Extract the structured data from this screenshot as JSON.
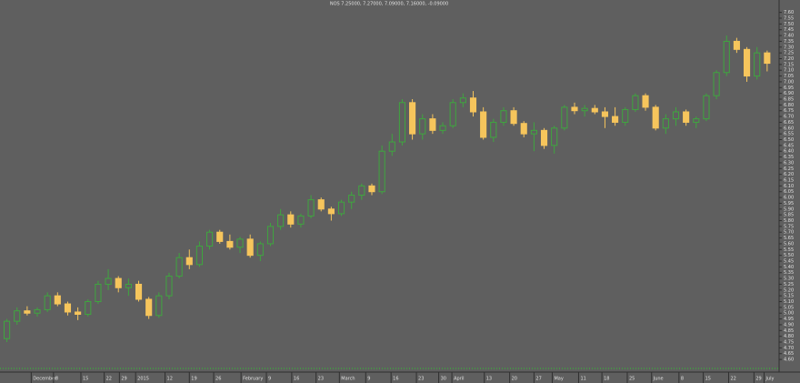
{
  "chart_data": {
    "type": "candlestick",
    "title": "NOS 7.25000, 7.27000, 7.09000, 7.16000, -0.09000",
    "up_color": "#3fa63f",
    "down_color": "#f6c55c",
    "open": [
      4.78,
      4.93,
      5.02,
      5.0,
      5.03,
      5.15,
      5.08,
      5.01,
      4.99,
      5.1,
      5.25,
      5.3,
      5.22,
      5.25,
      5.12,
      4.98,
      5.15,
      5.32,
      5.48,
      5.42,
      5.58,
      5.7,
      5.62,
      5.57,
      5.64,
      5.5,
      5.6,
      5.75,
      5.85,
      5.77,
      5.84,
      5.98,
      5.9,
      5.86,
      5.96,
      6.02,
      6.1,
      6.05,
      6.4,
      6.48,
      6.82,
      6.55,
      6.68,
      6.58,
      6.62,
      6.82,
      6.86,
      6.74,
      6.52,
      6.65,
      6.75,
      6.64,
      6.55,
      6.58,
      6.45,
      6.6,
      6.78,
      6.75,
      6.77,
      6.74,
      6.7,
      6.65,
      6.76,
      6.88,
      6.78,
      6.6,
      6.68,
      6.74,
      6.65,
      6.68,
      6.88,
      7.08,
      7.35,
      7.28,
      7.05,
      7.25
    ],
    "high": [
      4.95,
      5.05,
      5.06,
      5.05,
      5.18,
      5.18,
      5.1,
      5.05,
      5.12,
      5.28,
      5.38,
      5.32,
      5.3,
      5.28,
      5.14,
      5.18,
      5.35,
      5.52,
      5.55,
      5.62,
      5.72,
      5.72,
      5.68,
      5.66,
      5.68,
      5.62,
      5.78,
      5.9,
      5.88,
      5.86,
      6.02,
      6.0,
      5.92,
      5.98,
      6.05,
      6.12,
      6.12,
      6.45,
      6.55,
      6.85,
      6.85,
      6.72,
      6.72,
      6.65,
      6.85,
      6.9,
      6.92,
      6.78,
      6.68,
      6.78,
      6.78,
      6.66,
      6.65,
      6.6,
      6.62,
      6.8,
      6.82,
      6.8,
      6.8,
      6.78,
      6.78,
      6.78,
      6.9,
      6.9,
      6.8,
      6.72,
      6.78,
      6.76,
      6.7,
      6.9,
      7.1,
      7.4,
      7.38,
      7.3,
      7.3,
      7.27
    ],
    "low": [
      4.75,
      4.9,
      4.98,
      4.97,
      5.01,
      5.06,
      4.98,
      4.94,
      4.97,
      5.08,
      5.2,
      5.18,
      5.15,
      5.1,
      4.95,
      4.96,
      5.12,
      5.3,
      5.38,
      5.4,
      5.55,
      5.6,
      5.55,
      5.52,
      5.48,
      5.45,
      5.58,
      5.72,
      5.74,
      5.74,
      5.82,
      5.88,
      5.8,
      5.84,
      5.9,
      5.98,
      6.02,
      6.03,
      6.36,
      6.45,
      6.5,
      6.5,
      6.55,
      6.55,
      6.6,
      6.78,
      6.7,
      6.5,
      6.48,
      6.62,
      6.62,
      6.52,
      6.4,
      6.42,
      6.38,
      6.58,
      6.72,
      6.7,
      6.72,
      6.6,
      6.62,
      6.62,
      6.74,
      6.75,
      6.58,
      6.55,
      6.62,
      6.62,
      6.6,
      6.66,
      6.85,
      7.05,
      7.25,
      7.0,
      7.02,
      7.09
    ],
    "close": [
      4.93,
      5.02,
      5.0,
      5.03,
      5.15,
      5.08,
      5.01,
      4.99,
      5.1,
      5.25,
      5.3,
      5.22,
      5.25,
      5.12,
      4.98,
      5.15,
      5.32,
      5.48,
      5.42,
      5.58,
      5.7,
      5.62,
      5.57,
      5.64,
      5.5,
      5.6,
      5.75,
      5.85,
      5.77,
      5.84,
      5.98,
      5.9,
      5.86,
      5.96,
      6.02,
      6.1,
      6.05,
      6.4,
      6.48,
      6.82,
      6.55,
      6.68,
      6.58,
      6.62,
      6.82,
      6.86,
      6.74,
      6.52,
      6.65,
      6.75,
      6.64,
      6.55,
      6.58,
      6.45,
      6.6,
      6.78,
      6.75,
      6.77,
      6.74,
      6.7,
      6.65,
      6.76,
      6.88,
      6.78,
      6.6,
      6.68,
      6.74,
      6.65,
      6.68,
      6.88,
      7.08,
      7.35,
      7.28,
      7.05,
      7.25,
      7.16
    ],
    "xlim": [
      -0.5,
      76
    ],
    "xticks": [
      {
        "value": 2.4,
        "label": "December"
      },
      {
        "value": 4.6,
        "label": "8"
      },
      {
        "value": 7.3,
        "label": "15"
      },
      {
        "value": 9.6,
        "label": "22"
      },
      {
        "value": 11.1,
        "label": "29"
      },
      {
        "value": 12.7,
        "label": "2015"
      },
      {
        "value": 15.6,
        "label": "12"
      },
      {
        "value": 18,
        "label": "19"
      },
      {
        "value": 20.4,
        "label": "26"
      },
      {
        "value": 23.1,
        "label": "February"
      },
      {
        "value": 25.6,
        "label": "9"
      },
      {
        "value": 28.1,
        "label": "16"
      },
      {
        "value": 30.5,
        "label": "23"
      },
      {
        "value": 32.8,
        "label": "March"
      },
      {
        "value": 35.4,
        "label": "9"
      },
      {
        "value": 37.9,
        "label": "16"
      },
      {
        "value": 40.4,
        "label": "23"
      },
      {
        "value": 42.6,
        "label": "30"
      },
      {
        "value": 43.9,
        "label": "April"
      },
      {
        "value": 47.1,
        "label": "13"
      },
      {
        "value": 49.6,
        "label": "20"
      },
      {
        "value": 52,
        "label": "27"
      },
      {
        "value": 53.8,
        "label": "May"
      },
      {
        "value": 56.4,
        "label": "11"
      },
      {
        "value": 58.7,
        "label": "18"
      },
      {
        "value": 61.2,
        "label": "25"
      },
      {
        "value": 63.6,
        "label": "June"
      },
      {
        "value": 66.3,
        "label": "8"
      },
      {
        "value": 68.7,
        "label": "15"
      },
      {
        "value": 71.2,
        "label": "22"
      },
      {
        "value": 73.7,
        "label": "29"
      },
      {
        "value": 74.7,
        "label": "July"
      }
    ],
    "ylim": [
      4.53,
      7.66
    ],
    "yticks": [
      {
        "value": 4.6,
        "label": "4.60"
      },
      4.65,
      {
        "value": 4.7,
        "label": "4.70"
      },
      4.75,
      {
        "value": 4.8,
        "label": "4.80"
      },
      4.85,
      {
        "value": 4.9,
        "label": "4.90"
      },
      4.95,
      {
        "value": 5,
        "label": "5.00"
      },
      5.05,
      {
        "value": 5.1,
        "label": "5.10"
      },
      5.15,
      {
        "value": 5.2,
        "label": "5.20"
      },
      5.25,
      {
        "value": 5.3,
        "label": "5.30"
      },
      5.35,
      {
        "value": 5.4,
        "label": "5.40"
      },
      5.45,
      {
        "value": 5.5,
        "label": "5.50"
      },
      5.55,
      {
        "value": 5.6,
        "label": "5.60"
      },
      5.65,
      {
        "value": 5.7,
        "label": "5.70"
      },
      5.75,
      {
        "value": 5.8,
        "label": "5.80"
      },
      5.85,
      {
        "value": 5.9,
        "label": "5.90"
      },
      5.95,
      {
        "value": 6,
        "label": "6.00"
      },
      6.05,
      {
        "value": 6.1,
        "label": "6.10"
      },
      6.15,
      {
        "value": 6.2,
        "label": "6.20"
      },
      6.25,
      {
        "value": 6.3,
        "label": "6.30"
      },
      6.35,
      {
        "value": 6.4,
        "label": "6.40"
      },
      6.45,
      {
        "value": 6.5,
        "label": "6.50"
      },
      6.55,
      {
        "value": 6.6,
        "label": "6.60"
      },
      6.65,
      {
        "value": 6.7,
        "label": "6.70"
      },
      6.75,
      {
        "value": 6.8,
        "label": "6.80"
      },
      6.85,
      {
        "value": 6.9,
        "label": "6.90"
      },
      6.95,
      {
        "value": 7,
        "label": "7.00"
      },
      7.05,
      {
        "value": 7.1,
        "label": "7.10"
      },
      7.15,
      {
        "value": 7.2,
        "label": "7.20"
      },
      7.25,
      {
        "value": 7.3,
        "label": "7.30"
      },
      7.35,
      {
        "value": 7.4,
        "label": "7.40"
      },
      7.45,
      {
        "value": 7.5,
        "label": "7.50"
      },
      7.55,
      {
        "value": 7.6,
        "label": "7.60"
      }
    ],
    "grid": false
  }
}
